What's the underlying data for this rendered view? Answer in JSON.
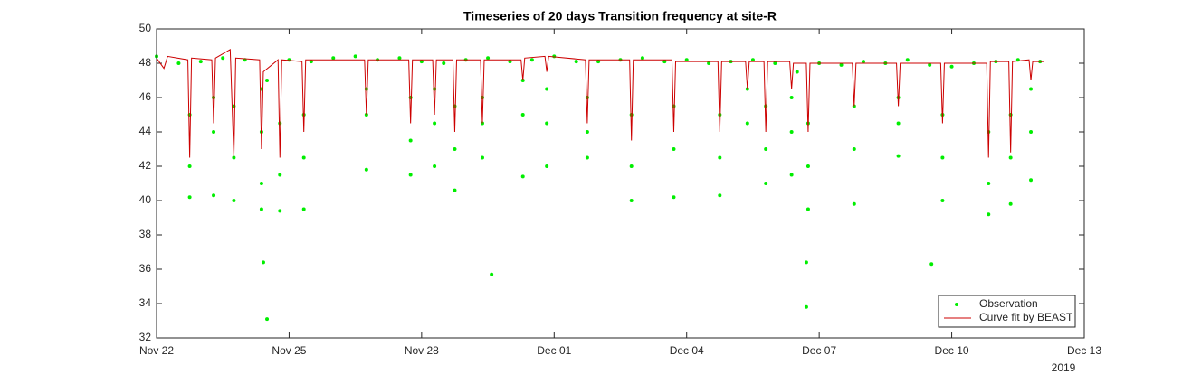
{
  "chart_data": {
    "type": "line",
    "title": "Timeseries of 20 days Transition frequency at site-R",
    "x_year": "2019",
    "xlim": [
      "2019-11-22T00:00",
      "2019-12-13T00:00"
    ],
    "xticks": [
      {
        "value": "2019-11-22T00:00",
        "label": "Nov 22"
      },
      {
        "value": "2019-11-25T00:00",
        "label": "Nov 25"
      },
      {
        "value": "2019-11-28T00:00",
        "label": "Nov 28"
      },
      {
        "value": "2019-12-01T00:00",
        "label": "Dec 01"
      },
      {
        "value": "2019-12-04T00:00",
        "label": "Dec 04"
      },
      {
        "value": "2019-12-07T00:00",
        "label": "Dec 07"
      },
      {
        "value": "2019-12-10T00:00",
        "label": "Dec 10"
      },
      {
        "value": "2019-12-13T00:00",
        "label": "Dec 13"
      }
    ],
    "ylim": [
      32,
      50
    ],
    "yticks": [
      32,
      34,
      36,
      38,
      40,
      42,
      44,
      46,
      48,
      50
    ],
    "grid": false,
    "legend_loc": "southeast",
    "series": [
      {
        "name": "Observation",
        "type": "scatter",
        "color": "#00ee00",
        "x": [
          "2019-11-22T00:00",
          "2019-11-22T12:00",
          "2019-11-23T00:00",
          "2019-11-23T12:00",
          "2019-11-24T00:00",
          "2019-11-24T12:00",
          "2019-11-25T00:00",
          "2019-11-25T12:00",
          "2019-11-26T00:00",
          "2019-11-26T12:00",
          "2019-11-27T00:00",
          "2019-11-27T12:00",
          "2019-11-28T00:00",
          "2019-11-28T12:00",
          "2019-11-29T00:00",
          "2019-11-29T12:00",
          "2019-11-30T00:00",
          "2019-11-30T12:00",
          "2019-12-01T00:00",
          "2019-12-01T12:00",
          "2019-12-02T00:00",
          "2019-12-02T12:00",
          "2019-12-03T00:00",
          "2019-12-03T12:00",
          "2019-12-04T00:00",
          "2019-12-04T12:00",
          "2019-12-05T00:00",
          "2019-12-05T12:00",
          "2019-12-06T00:00",
          "2019-12-06T12:00",
          "2019-12-07T00:00",
          "2019-12-07T12:00",
          "2019-12-08T00:00",
          "2019-12-08T12:00",
          "2019-12-09T00:00",
          "2019-12-09T12:00",
          "2019-12-10T00:00",
          "2019-12-10T12:00",
          "2019-12-11T00:00",
          "2019-12-11T12:00",
          "2019-12-12T00:00",
          "2019-11-22T18:00",
          "2019-11-22T18:00",
          "2019-11-22T18:00",
          "2019-11-23T07:00",
          "2019-11-23T07:00",
          "2019-11-23T07:00",
          "2019-11-23T18:00",
          "2019-11-23T18:00",
          "2019-11-23T18:00",
          "2019-11-24T09:00",
          "2019-11-24T09:00",
          "2019-11-24T09:00",
          "2019-11-24T09:00",
          "2019-11-24T19:00",
          "2019-11-24T19:00",
          "2019-11-24T19:00",
          "2019-11-25T08:00",
          "2019-11-25T08:00",
          "2019-11-25T08:00",
          "2019-11-26T18:00",
          "2019-11-26T18:00",
          "2019-11-26T18:00",
          "2019-11-27T18:00",
          "2019-11-27T18:00",
          "2019-11-27T18:00",
          "2019-11-28T07:00",
          "2019-11-28T07:00",
          "2019-11-28T07:00",
          "2019-11-28T18:00",
          "2019-11-28T18:00",
          "2019-11-28T18:00",
          "2019-11-29T09:00",
          "2019-11-29T09:00",
          "2019-11-29T09:00",
          "2019-11-30T07:00",
          "2019-11-30T07:00",
          "2019-11-30T07:00",
          "2019-11-30T20:00",
          "2019-11-30T20:00",
          "2019-11-30T20:00",
          "2019-12-01T18:00",
          "2019-12-01T18:00",
          "2019-12-01T18:00",
          "2019-12-02T18:00",
          "2019-12-02T18:00",
          "2019-12-02T18:00",
          "2019-12-03T17:00",
          "2019-12-03T17:00",
          "2019-12-03T17:00",
          "2019-12-04T18:00",
          "2019-12-04T18:00",
          "2019-12-04T18:00",
          "2019-12-05T09:00",
          "2019-12-05T09:00",
          "2019-12-05T19:00",
          "2019-12-05T19:00",
          "2019-12-05T19:00",
          "2019-12-06T09:00",
          "2019-12-06T09:00",
          "2019-12-06T09:00",
          "2019-12-06T18:00",
          "2019-12-06T18:00",
          "2019-12-06T18:00",
          "2019-12-07T19:00",
          "2019-12-07T19:00",
          "2019-12-07T19:00",
          "2019-12-08T19:00",
          "2019-12-08T19:00",
          "2019-12-08T19:00",
          "2019-12-09T19:00",
          "2019-12-09T19:00",
          "2019-12-09T19:00",
          "2019-12-10T20:00",
          "2019-12-10T20:00",
          "2019-12-10T20:00",
          "2019-12-11T08:00",
          "2019-12-11T08:00",
          "2019-12-11T08:00",
          "2019-12-11T19:00",
          "2019-12-11T19:00",
          "2019-12-11T19:00",
          "2019-11-24T10:00",
          "2019-11-24T12:00",
          "2019-11-29T14:00",
          "2019-12-06T17:00",
          "2019-12-06T17:00",
          "2019-12-09T13:00"
        ],
        "values": [
          48.4,
          48.0,
          48.1,
          48.3,
          48.2,
          47.0,
          48.2,
          48.1,
          48.3,
          48.4,
          48.2,
          48.3,
          48.1,
          48.0,
          48.2,
          48.3,
          48.1,
          48.2,
          48.4,
          48.1,
          48.1,
          48.2,
          48.3,
          48.1,
          48.2,
          48.0,
          48.1,
          48.2,
          48.0,
          47.5,
          48.0,
          47.9,
          48.1,
          48.0,
          48.2,
          47.9,
          47.8,
          48.0,
          48.1,
          48.2,
          48.1,
          40.2,
          42.0,
          45.0,
          40.3,
          44.0,
          46.0,
          40.0,
          42.5,
          45.5,
          39.5,
          41.0,
          44.0,
          46.5,
          39.4,
          41.5,
          44.5,
          39.5,
          42.5,
          45.0,
          41.8,
          45.0,
          46.5,
          41.5,
          43.5,
          46.0,
          42.0,
          44.5,
          46.5,
          40.6,
          43.0,
          45.5,
          42.5,
          44.5,
          46.0,
          41.4,
          45.0,
          47.0,
          42.0,
          44.5,
          46.5,
          42.5,
          44.0,
          46.0,
          40.0,
          42.0,
          45.0,
          40.2,
          43.0,
          45.5,
          40.3,
          42.5,
          45.0,
          44.5,
          46.5,
          41.0,
          43.0,
          45.5,
          41.5,
          44.0,
          46.0,
          39.5,
          42.0,
          44.5,
          39.8,
          43.0,
          45.5,
          42.6,
          44.5,
          46.0,
          40.0,
          42.5,
          45.0,
          39.2,
          41.0,
          44.0,
          39.8,
          42.5,
          45.0,
          41.2,
          44.0,
          46.5,
          36.4,
          33.1,
          35.7,
          36.4,
          33.8,
          36.3
        ]
      },
      {
        "name": "Curve fit by BEAST",
        "type": "line",
        "color": "#cc0000",
        "x": [
          "2019-11-22T00:00",
          "2019-11-22T04:00",
          "2019-11-22T06:00",
          "2019-11-22T17:00",
          "2019-11-22T18:00",
          "2019-11-22T19:00",
          "2019-11-23T06:00",
          "2019-11-23T07:00",
          "2019-11-23T08:00",
          "2019-11-23T16:00",
          "2019-11-23T18:00",
          "2019-11-23T19:00",
          "2019-11-24T08:00",
          "2019-11-24T09:00",
          "2019-11-24T10:00",
          "2019-11-24T18:00",
          "2019-11-24T19:00",
          "2019-11-24T20:00",
          "2019-11-25T07:00",
          "2019-11-25T08:00",
          "2019-11-25T09:00",
          "2019-11-26T17:00",
          "2019-11-26T18:00",
          "2019-11-26T19:00",
          "2019-11-27T17:00",
          "2019-11-27T18:00",
          "2019-11-27T19:00",
          "2019-11-28T06:00",
          "2019-11-28T07:00",
          "2019-11-28T08:00",
          "2019-11-28T17:00",
          "2019-11-28T18:00",
          "2019-11-28T19:00",
          "2019-11-29T08:00",
          "2019-11-29T09:00",
          "2019-11-29T10:00",
          "2019-11-30T06:00",
          "2019-11-30T07:00",
          "2019-11-30T08:00",
          "2019-11-30T19:00",
          "2019-11-30T20:00",
          "2019-11-30T21:00",
          "2019-12-01T17:00",
          "2019-12-01T18:00",
          "2019-12-01T19:00",
          "2019-12-02T17:00",
          "2019-12-02T18:00",
          "2019-12-02T19:00",
          "2019-12-03T16:00",
          "2019-12-03T17:00",
          "2019-12-03T18:00",
          "2019-12-04T17:00",
          "2019-12-04T18:00",
          "2019-12-04T19:00",
          "2019-12-05T08:00",
          "2019-12-05T09:00",
          "2019-12-05T10:00",
          "2019-12-05T18:00",
          "2019-12-05T19:00",
          "2019-12-05T20:00",
          "2019-12-06T08:00",
          "2019-12-06T09:00",
          "2019-12-06T10:00",
          "2019-12-06T17:00",
          "2019-12-06T18:00",
          "2019-12-06T19:00",
          "2019-12-07T18:00",
          "2019-12-07T19:00",
          "2019-12-07T20:00",
          "2019-12-08T18:00",
          "2019-12-08T19:00",
          "2019-12-08T20:00",
          "2019-12-09T18:00",
          "2019-12-09T19:00",
          "2019-12-09T20:00",
          "2019-12-10T19:00",
          "2019-12-10T20:00",
          "2019-12-10T21:00",
          "2019-12-11T07:00",
          "2019-12-11T08:00",
          "2019-12-11T09:00",
          "2019-12-11T18:00",
          "2019-12-11T19:00",
          "2019-12-11T20:00",
          "2019-12-12T02:00"
        ],
        "values": [
          48.3,
          47.7,
          48.4,
          48.2,
          42.5,
          48.3,
          48.2,
          44.5,
          48.3,
          48.8,
          42.5,
          48.3,
          48.2,
          43,
          47.5,
          48.2,
          42.5,
          48.2,
          48.1,
          44,
          48.2,
          48.2,
          45,
          48.2,
          48.2,
          44.5,
          48.2,
          48.2,
          45,
          48.2,
          48.2,
          44,
          48.2,
          48.2,
          44.5,
          48.2,
          48.2,
          47,
          48.3,
          48.4,
          47.5,
          48.4,
          48.2,
          44.5,
          48.2,
          48.2,
          43.5,
          48.2,
          48.2,
          44,
          48.1,
          48.1,
          44,
          48.1,
          48.1,
          46.5,
          48.1,
          48.1,
          44,
          48.1,
          48.1,
          46.5,
          48.0,
          48.0,
          44,
          48.0,
          48.0,
          45.5,
          48.0,
          48.0,
          45.5,
          48.0,
          48.0,
          44.5,
          48.0,
          48.0,
          42.5,
          48.1,
          48.1,
          42.8,
          48.1,
          48.2,
          47,
          48.1,
          48.1
        ]
      }
    ]
  }
}
